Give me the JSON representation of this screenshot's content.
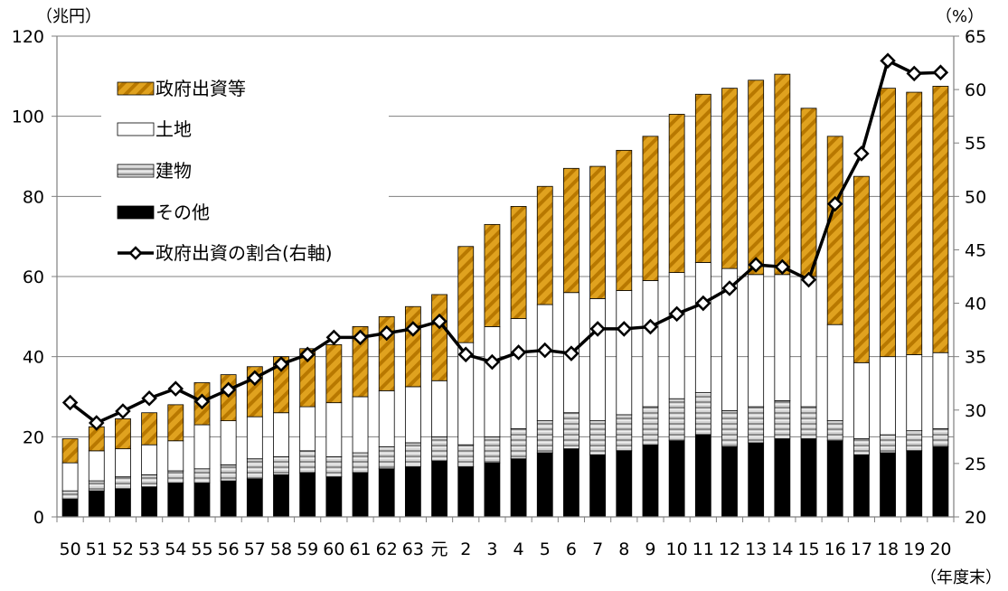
{
  "chart_data": {
    "type": "bar",
    "stacked": true,
    "left_unit": "（兆円）",
    "right_unit": "（%）",
    "x_unit": "（年度末）",
    "left_axis": {
      "ylim": [
        0,
        120
      ],
      "ticks": [
        0,
        20,
        40,
        60,
        80,
        100,
        120
      ]
    },
    "right_axis": {
      "ylim": [
        20,
        65
      ],
      "ticks": [
        20,
        25,
        30,
        35,
        40,
        45,
        50,
        55,
        60,
        65
      ]
    },
    "grid": "horizontal",
    "legend_position": "top-left",
    "categories": [
      "50",
      "51",
      "52",
      "53",
      "54",
      "55",
      "56",
      "57",
      "58",
      "59",
      "60",
      "61",
      "62",
      "63",
      "元",
      "2",
      "3",
      "4",
      "5",
      "6",
      "7",
      "8",
      "9",
      "10",
      "11",
      "12",
      "13",
      "14",
      "15",
      "16",
      "17",
      "18",
      "19",
      "20"
    ],
    "series": [
      {
        "name": "その他",
        "color": "#000000",
        "values": [
          4.5,
          6.5,
          7.0,
          7.5,
          8.5,
          8.5,
          9.0,
          9.5,
          10.5,
          11.0,
          10.0,
          11.0,
          12.0,
          12.5,
          14.0,
          12.5,
          13.5,
          14.5,
          16.0,
          17.0,
          15.5,
          16.5,
          18.0,
          19.0,
          20.5,
          17.5,
          18.5,
          19.5,
          19.5,
          19.0,
          15.5,
          16.0,
          16.5,
          17.5
        ]
      },
      {
        "name": "建物",
        "color": "#a6a6a6",
        "values": [
          2.0,
          2.5,
          3.0,
          3.0,
          3.0,
          3.5,
          4.0,
          5.0,
          4.5,
          5.5,
          5.0,
          5.0,
          5.5,
          6.0,
          6.0,
          5.5,
          6.5,
          7.5,
          8.0,
          9.0,
          8.5,
          9.0,
          9.5,
          10.5,
          10.5,
          9.0,
          9.0,
          9.5,
          8.0,
          5.0,
          4.0,
          4.5,
          5.0,
          4.5
        ]
      },
      {
        "name": "土地",
        "color": "#ffffff",
        "values": [
          7.0,
          7.5,
          7.0,
          7.5,
          7.5,
          11.0,
          11.0,
          10.5,
          11.0,
          11.0,
          13.5,
          14.0,
          14.0,
          14.0,
          14.0,
          25.5,
          27.5,
          27.5,
          29.0,
          30.0,
          30.5,
          31.0,
          31.5,
          31.5,
          32.5,
          35.5,
          33.0,
          31.5,
          32.5,
          24.0,
          19.0,
          19.5,
          19.0,
          19.0
        ]
      },
      {
        "name": "政府出資等",
        "color": "#d99a10",
        "values": [
          6.0,
          6.0,
          7.5,
          8.0,
          9.0,
          10.5,
          11.5,
          12.5,
          14.0,
          14.5,
          14.5,
          17.5,
          18.5,
          20.0,
          21.5,
          24.0,
          25.5,
          28.0,
          29.5,
          31.0,
          33.0,
          35.0,
          36.0,
          39.5,
          42.0,
          45.0,
          48.5,
          50.0,
          42.0,
          47.0,
          46.5,
          67.0,
          65.5,
          66.5
        ]
      }
    ],
    "line_series": {
      "name": "政府出資の割合(右軸)",
      "axis": "right",
      "values": [
        30.7,
        28.8,
        29.9,
        31.1,
        32.0,
        30.8,
        31.9,
        33.0,
        34.3,
        35.2,
        36.8,
        36.8,
        37.2,
        37.6,
        38.3,
        35.2,
        34.5,
        35.4,
        35.6,
        35.3,
        37.6,
        37.6,
        37.8,
        39.0,
        40.0,
        41.4,
        43.6,
        43.4,
        42.2,
        49.3,
        54.0,
        62.7,
        61.5,
        61.6
      ]
    },
    "legend": [
      "政府出資等",
      "土地",
      "建物",
      "その他",
      "政府出資の割合(右軸)"
    ]
  }
}
